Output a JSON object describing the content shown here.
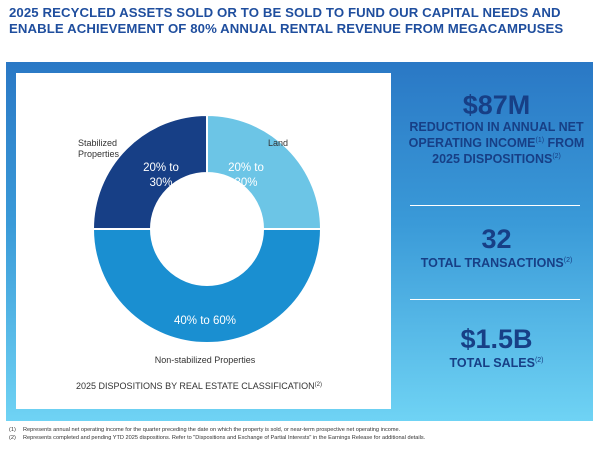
{
  "headline": "2025 RECYCLED ASSETS SOLD OR TO BE SOLD TO FUND OUR CAPITAL NEEDS AND ENABLE ACHIEVEMENT OF 80% ANNUAL RENTAL REVENUE FROM MEGACAMPUSES",
  "chart_data": {
    "type": "pie",
    "title": "2025 DISPOSITIONS BY REAL ESTATE CLASSIFICATION",
    "title_footnote": "(2)",
    "slices": [
      {
        "label": "Land",
        "value_label": "20% to 30%",
        "value": 25,
        "color": "#6cc5e6"
      },
      {
        "label": "Non-stabilized Properties",
        "value_label": "40% to 60%",
        "value": 50,
        "color": "#1a8fd1"
      },
      {
        "label": "Stabilized Properties",
        "value_label": "20% to 30%",
        "value": 25,
        "color": "#173f86"
      }
    ]
  },
  "stats": [
    {
      "value": "$87M",
      "description": "REDUCTION IN ANNUAL NET OPERATING INCOME",
      "footnote": "(1)",
      "description_2": "FROM 2025 DISPOSITIONS",
      "footnote_2": "(2)"
    },
    {
      "value": "32",
      "description": "TOTAL TRANSACTIONS",
      "footnote": "(2)"
    },
    {
      "value": "$1.5B",
      "description": "TOTAL SALES",
      "footnote": "(2)"
    }
  ],
  "footnotes": [
    {
      "num": "(1)",
      "text": "Represents annual net operating income for the quarter preceding the date on which the property is sold, or near-term prospective net operating income."
    },
    {
      "num": "(2)",
      "text": "Represents completed and pending YTD 2025 dispositions. Refer to \"Dispositions and Exchange of Partial Interests\" in the Earnings Release for additional details."
    }
  ]
}
